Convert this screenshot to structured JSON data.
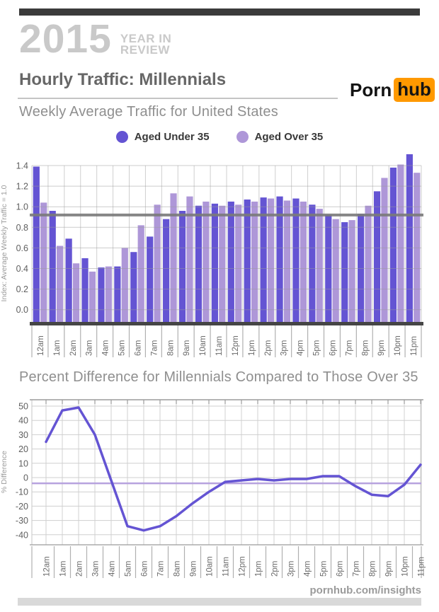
{
  "header": {
    "year": "2015",
    "year_review_line1": "YEAR IN",
    "year_review_line2": "REVIEW",
    "title": "Hourly Traffic: Millennials",
    "logo_part1": "Porn",
    "logo_part2": "hub",
    "logo_accent": "#ff9900"
  },
  "legend": [
    {
      "label": "Aged Under 35",
      "color": "#6454d3"
    },
    {
      "label": "Aged Over 35",
      "color": "#ae97d8"
    }
  ],
  "chart_data": [
    {
      "type": "bar",
      "title": "Weekly Average Traffic for United States",
      "ylabel": "Index: Average Weekly Traffic = 1.0",
      "categories": [
        "12am",
        "1am",
        "2am",
        "3am",
        "4am",
        "5am",
        "6am",
        "7am",
        "8am",
        "9am",
        "10am",
        "11am",
        "12pm",
        "1pm",
        "2pm",
        "3pm",
        "4pm",
        "5pm",
        "6pm",
        "7pm",
        "8pm",
        "9pm",
        "10pm",
        "11pm"
      ],
      "series": [
        {
          "name": "Aged Under 35",
          "color": "#6454d3",
          "values": [
            1.39,
            0.96,
            0.69,
            0.5,
            0.41,
            0.42,
            0.56,
            0.71,
            0.88,
            0.96,
            1.01,
            1.03,
            1.05,
            1.07,
            1.09,
            1.1,
            1.08,
            1.02,
            0.92,
            0.85,
            0.93,
            1.15,
            1.38,
            1.51
          ]
        },
        {
          "name": "Aged Over 35",
          "color": "#ae97d8",
          "values": [
            1.04,
            0.62,
            0.45,
            0.37,
            0.42,
            0.6,
            0.82,
            1.02,
            1.13,
            1.1,
            1.05,
            1.01,
            1.02,
            1.05,
            1.08,
            1.06,
            1.05,
            0.98,
            0.88,
            0.87,
            1.01,
            1.28,
            1.41,
            1.33
          ]
        }
      ],
      "ylim": [
        0.0,
        1.4
      ],
      "yticks": [
        "0.0",
        "0.2",
        "0.4",
        "0.6",
        "0.8",
        "1.0",
        "1.2",
        "1.4"
      ],
      "reference_line": 0.92,
      "reference_color": "#7a7a7a",
      "grid": true,
      "legend_position": "top"
    },
    {
      "type": "line",
      "title": "Percent Difference for Millennials Compared to Those Over 35",
      "ylabel": "% Difference",
      "categories": [
        "12am",
        "1am",
        "2am",
        "3am",
        "4am",
        "5am",
        "6am",
        "7am",
        "8am",
        "9am",
        "10am",
        "11am",
        "12pm",
        "1pm",
        "2pm",
        "3pm",
        "4pm",
        "5pm",
        "6pm",
        "7pm",
        "8pm",
        "9pm",
        "10pm",
        "11pm"
      ],
      "values": [
        25,
        47,
        49,
        30,
        -2,
        -34,
        -37,
        -34,
        -27,
        -18,
        -10,
        -3,
        -2,
        -1,
        -2,
        -1,
        -1,
        1,
        1,
        -6,
        -12,
        -13,
        -5,
        9
      ],
      "ylim": [
        -40,
        50
      ],
      "yticks": [
        "50",
        "40",
        "30",
        "20",
        "10",
        "0",
        "-10",
        "-20",
        "-30",
        "-40"
      ],
      "reference_line": -4,
      "reference_color": "#b7a2de",
      "color": "#6454d3",
      "grid": true
    }
  ],
  "footer": {
    "url": "pornhub.com/insights"
  }
}
